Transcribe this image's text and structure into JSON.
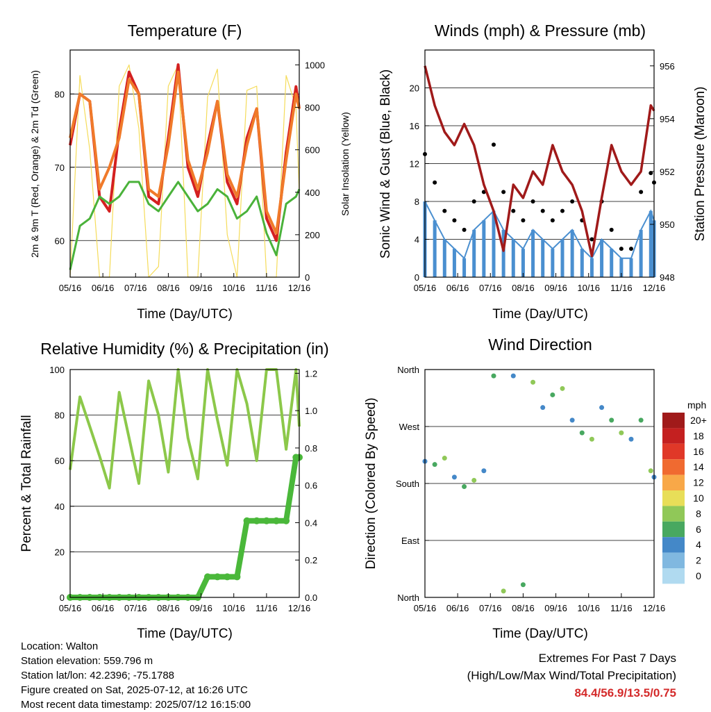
{
  "x_ticks": [
    "05/16",
    "06/16",
    "07/16",
    "08/16",
    "09/16",
    "10/16",
    "11/16",
    "12/16"
  ],
  "x_title": "Time (Day/UTC)",
  "colors": {
    "t2m": "#d42020",
    "t9m": "#f07a2a",
    "td": "#4ab23a",
    "solar": "#f5dc5a",
    "wind": "#4a8fd0",
    "gust": "#000000",
    "pressure": "#a01a1a",
    "rh": "#8cc84a",
    "precip": "#4ab83a"
  },
  "info": {
    "location": "Location: Walton",
    "elevation": "Station elevation: 559.796 m",
    "latlon": "Station lat/lon: 42.2396; -75.1788",
    "created": "Figure created on Sat, 2025-07-12, at 16:26 UTC",
    "latest": "Most recent data timestamp: 2025/07/12 16:15:00"
  },
  "extremes": {
    "line1": "Extremes For Past 7 Days",
    "line2": "(High/Low/Max Wind/Total Precipitation)",
    "values": "84.4/56.9/13.5/0.75"
  },
  "chart_data": [
    {
      "type": "line",
      "title": "Temperature (F)",
      "xlabel": "Time (Day/UTC)",
      "ylabel": "2m & 9m T (Red, Orange) & 2m Td (Green)",
      "ylabel_right": "Solar Insolation (Yellow)",
      "ylim": [
        55,
        86
      ],
      "y_ticks": [
        60,
        70,
        80
      ],
      "y2lim": [
        0,
        1070
      ],
      "y2_ticks": [
        0,
        200,
        400,
        600,
        800,
        1000
      ],
      "x": [
        0,
        0.3,
        0.6,
        0.9,
        1.2,
        1.5,
        1.8,
        2.1,
        2.4,
        2.7,
        3.0,
        3.3,
        3.6,
        3.9,
        4.2,
        4.5,
        4.8,
        5.1,
        5.4,
        5.7,
        6.0,
        6.3,
        6.6,
        6.9,
        7.0
      ],
      "series": [
        {
          "key": "t2m",
          "axis": "left",
          "values": [
            73,
            80,
            79,
            66,
            64,
            75,
            83,
            80,
            66,
            65,
            74,
            84,
            70,
            66,
            73,
            79,
            68,
            65,
            74,
            78,
            63,
            60,
            72,
            81,
            78
          ]
        },
        {
          "key": "t9m",
          "axis": "left",
          "values": [
            74,
            80,
            79,
            67,
            70,
            74,
            82,
            80,
            67,
            66,
            73,
            83,
            71,
            67,
            72,
            79,
            69,
            66,
            73,
            78,
            64,
            61,
            71,
            80,
            78
          ]
        },
        {
          "key": "td",
          "axis": "left",
          "values": [
            56,
            62,
            63,
            66,
            65,
            66,
            68,
            68,
            65,
            64,
            66,
            68,
            66,
            64,
            65,
            67,
            66,
            63,
            64,
            66,
            61,
            58,
            65,
            66,
            67
          ]
        },
        {
          "key": "solar",
          "axis": "right",
          "values": [
            0,
            950,
            600,
            0,
            0,
            900,
            1000,
            700,
            0,
            50,
            900,
            1000,
            0,
            0,
            850,
            980,
            200,
            0,
            880,
            900,
            0,
            0,
            950,
            800,
            400
          ]
        }
      ]
    },
    {
      "type": "scatter",
      "title": "Winds (mph) & Pressure (mb)",
      "xlabel": "Time (Day/UTC)",
      "ylabel": "Sonic Wind & Gust (Blue, Black)",
      "ylabel_right": "Station Pressure (Maroon)",
      "ylim": [
        0,
        24
      ],
      "y_ticks": [
        0,
        4,
        8,
        12,
        16,
        20
      ],
      "y2lim": [
        948,
        956.6
      ],
      "y2_ticks": [
        948,
        950,
        952,
        954,
        956
      ],
      "x": [
        0,
        0.3,
        0.6,
        0.9,
        1.2,
        1.5,
        1.8,
        2.1,
        2.4,
        2.7,
        3.0,
        3.3,
        3.6,
        3.9,
        4.2,
        4.5,
        4.8,
        5.1,
        5.4,
        5.7,
        6.0,
        6.3,
        6.6,
        6.9,
        7.0
      ],
      "series": [
        {
          "key": "wind",
          "axis": "left",
          "values": [
            8,
            6,
            4,
            3,
            2,
            5,
            6,
            7,
            5,
            4,
            3,
            5,
            4,
            3,
            4,
            5,
            3,
            2,
            4,
            3,
            2,
            2,
            5,
            7,
            6
          ]
        },
        {
          "key": "gust",
          "axis": "left",
          "values": [
            13,
            10,
            7,
            6,
            5,
            8,
            9,
            14,
            9,
            7,
            6,
            8,
            7,
            6,
            7,
            8,
            6,
            4,
            8,
            5,
            3,
            3,
            9,
            11,
            10
          ]
        },
        {
          "key": "pressure",
          "axis": "right",
          "values": [
            956,
            954.5,
            953.5,
            953,
            953.8,
            953,
            951.5,
            950.5,
            949,
            951.5,
            951,
            952,
            951.5,
            953,
            952,
            951.5,
            950.5,
            948.8,
            951,
            953,
            952,
            951.5,
            952,
            954.5,
            954.3
          ]
        }
      ]
    },
    {
      "type": "line",
      "title": "Relative Humidity (%) & Precipitation (in)",
      "xlabel": "Time (Day/UTC)",
      "ylabel": "Percent & Total Rainfall",
      "ylim": [
        0,
        100
      ],
      "y_ticks": [
        0,
        20,
        40,
        60,
        80,
        100
      ],
      "y2lim": [
        0,
        1.22
      ],
      "y2_ticks": [
        0.0,
        0.2,
        0.4,
        0.6,
        0.8,
        1.0,
        1.2
      ],
      "x": [
        0,
        0.3,
        0.6,
        0.9,
        1.2,
        1.5,
        1.8,
        2.1,
        2.4,
        2.7,
        3.0,
        3.3,
        3.6,
        3.9,
        4.2,
        4.5,
        4.8,
        5.1,
        5.4,
        5.7,
        6.0,
        6.3,
        6.6,
        6.9,
        7.0
      ],
      "series": [
        {
          "key": "rh",
          "axis": "left",
          "values": [
            56,
            88,
            75,
            62,
            48,
            90,
            70,
            50,
            95,
            80,
            55,
            100,
            70,
            52,
            100,
            78,
            58,
            100,
            85,
            60,
            100,
            100,
            65,
            100,
            75
          ]
        },
        {
          "key": "precip",
          "axis": "right",
          "values": [
            0,
            0,
            0,
            0,
            0,
            0,
            0,
            0,
            0,
            0,
            0,
            0,
            0,
            0,
            0.11,
            0.11,
            0.11,
            0.11,
            0.41,
            0.41,
            0.41,
            0.41,
            0.41,
            0.75,
            0.75
          ]
        }
      ]
    },
    {
      "type": "scatter",
      "title": "Wind Direction",
      "xlabel": "Time (Day/UTC)",
      "ylabel": "Direction (Colored By Speed)",
      "y_categories": [
        "North",
        "East",
        "South",
        "West",
        "North"
      ],
      "colorbar": {
        "title": "mph",
        "labels": [
          "20+",
          "18",
          "16",
          "14",
          "12",
          "10",
          "8",
          "6",
          "4",
          "2",
          "0"
        ],
        "colors": [
          "#a01a1a",
          "#c42020",
          "#e03828",
          "#f06a30",
          "#f8a848",
          "#e8de58",
          "#90c858",
          "#48a860",
          "#4488c8",
          "#80b8e0",
          "#b0daf0"
        ]
      },
      "x": [
        0,
        0.3,
        0.6,
        0.9,
        1.2,
        1.5,
        1.8,
        2.1,
        2.4,
        2.7,
        3.0,
        3.3,
        3.6,
        3.9,
        4.2,
        4.5,
        4.8,
        5.1,
        5.4,
        5.7,
        6.0,
        6.3,
        6.6,
        6.9,
        7.0
      ],
      "series": [
        {
          "key": "direction_deg",
          "values": [
            215,
            210,
            220,
            190,
            175,
            185,
            200,
            350,
            10,
            350,
            20,
            340,
            300,
            320,
            330,
            280,
            260,
            250,
            300,
            280,
            260,
            250,
            280,
            200,
            190
          ]
        }
      ]
    }
  ]
}
